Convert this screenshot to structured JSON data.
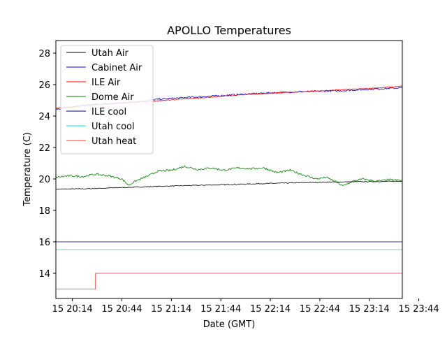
{
  "chart_data": {
    "type": "line",
    "title": "APOLLO Temperatures",
    "xlabel": "Date (GMT)",
    "ylabel": "Temperature (C)",
    "xlim": [
      0,
      210
    ],
    "ylim": [
      12.4,
      28.8
    ],
    "x_unit": "minutes since 20:04 GMT",
    "xticks": [
      {
        "value": 10,
        "label": "15 20:14"
      },
      {
        "value": 40,
        "label": "15 20:44"
      },
      {
        "value": 70,
        "label": "15 21:14"
      },
      {
        "value": 100,
        "label": "15 21:44"
      },
      {
        "value": 130,
        "label": "15 22:14"
      },
      {
        "value": 160,
        "label": "15 22:44"
      },
      {
        "value": 190,
        "label": "15 23:14"
      },
      {
        "value": 220,
        "label": "15 23:44"
      }
    ],
    "yticks": [
      14,
      16,
      18,
      20,
      22,
      24,
      26,
      28
    ],
    "legend_position": "upper-left",
    "series": [
      {
        "name": "Utah Air",
        "color": "#000000",
        "step": false,
        "points": [
          [
            0,
            19.35
          ],
          [
            20,
            19.38
          ],
          [
            40,
            19.45
          ],
          [
            60,
            19.52
          ],
          [
            80,
            19.58
          ],
          [
            100,
            19.63
          ],
          [
            120,
            19.69
          ],
          [
            140,
            19.74
          ],
          [
            160,
            19.79
          ],
          [
            180,
            19.82
          ],
          [
            200,
            19.84
          ],
          [
            210,
            19.86
          ]
        ]
      },
      {
        "name": "Cabinet Air",
        "color": "#0000cc",
        "step": false,
        "points": [
          [
            0,
            24.45
          ],
          [
            20,
            24.7
          ],
          [
            40,
            24.85
          ],
          [
            50,
            24.92
          ],
          [
            60,
            25.05
          ],
          [
            75,
            25.15
          ],
          [
            100,
            25.3
          ],
          [
            125,
            25.45
          ],
          [
            150,
            25.55
          ],
          [
            175,
            25.62
          ],
          [
            190,
            25.7
          ],
          [
            200,
            25.75
          ],
          [
            210,
            25.8
          ]
        ]
      },
      {
        "name": "ILE Air",
        "color": "#ff0000",
        "step": false,
        "points": [
          [
            0,
            24.5
          ],
          [
            20,
            24.68
          ],
          [
            40,
            24.82
          ],
          [
            60,
            24.95
          ],
          [
            80,
            25.1
          ],
          [
            100,
            25.25
          ],
          [
            120,
            25.4
          ],
          [
            140,
            25.5
          ],
          [
            160,
            25.6
          ],
          [
            180,
            25.7
          ],
          [
            200,
            25.82
          ],
          [
            210,
            25.9
          ]
        ]
      },
      {
        "name": "Dome Air",
        "color": "#008000",
        "step": false,
        "points": [
          [
            0,
            20.1
          ],
          [
            8,
            20.2
          ],
          [
            16,
            20.15
          ],
          [
            24,
            20.3
          ],
          [
            32,
            20.2
          ],
          [
            40,
            20.0
          ],
          [
            44,
            19.6
          ],
          [
            48,
            19.85
          ],
          [
            56,
            20.2
          ],
          [
            62,
            20.5
          ],
          [
            70,
            20.55
          ],
          [
            78,
            20.8
          ],
          [
            86,
            20.6
          ],
          [
            94,
            20.7
          ],
          [
            102,
            20.55
          ],
          [
            110,
            20.7
          ],
          [
            118,
            20.65
          ],
          [
            126,
            20.7
          ],
          [
            134,
            20.4
          ],
          [
            142,
            20.55
          ],
          [
            150,
            20.25
          ],
          [
            158,
            20.0
          ],
          [
            164,
            20.1
          ],
          [
            170,
            19.8
          ],
          [
            174,
            19.55
          ],
          [
            180,
            19.85
          ],
          [
            186,
            20.0
          ],
          [
            194,
            19.85
          ],
          [
            202,
            19.95
          ],
          [
            210,
            19.9
          ]
        ]
      },
      {
        "name": "ILE cool",
        "color": "#000080",
        "step": false,
        "points": [
          [
            0,
            16.0
          ],
          [
            210,
            16.0
          ]
        ]
      },
      {
        "name": "Utah cool",
        "color": "#00e5e5",
        "step": false,
        "points": [
          [
            0,
            15.5
          ],
          [
            210,
            15.5
          ]
        ]
      },
      {
        "name": "Utah heat",
        "color": "#ff3030",
        "step": true,
        "points": [
          [
            0,
            13.0
          ],
          [
            24,
            13.0
          ],
          [
            24,
            14.0
          ],
          [
            210,
            14.0
          ]
        ]
      }
    ]
  }
}
